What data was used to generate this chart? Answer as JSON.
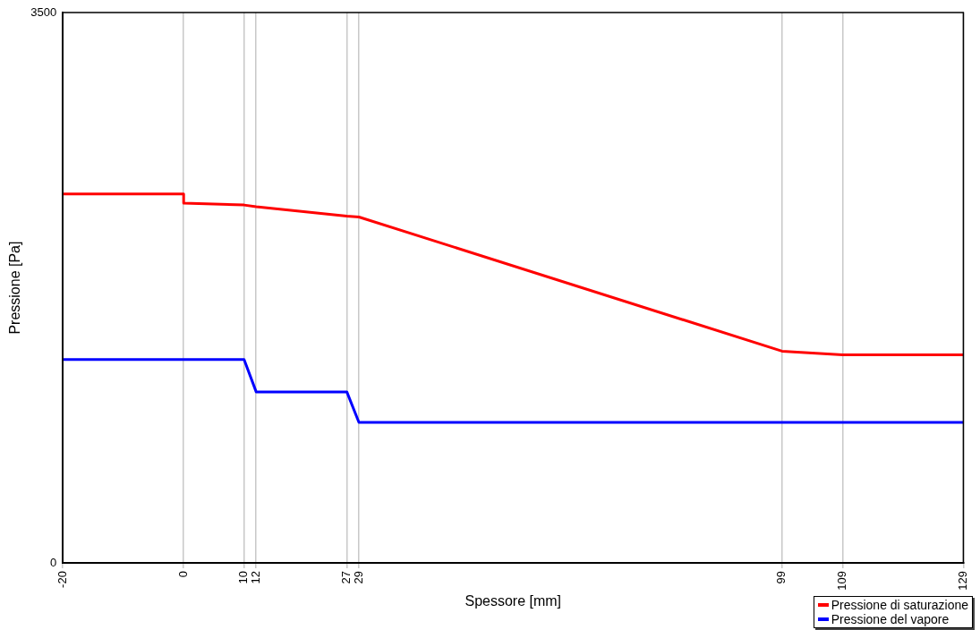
{
  "chart_data": {
    "type": "line",
    "xlabel": "Spessore [mm]",
    "ylabel": "Pressione [Pa]",
    "x": [
      -20,
      0,
      0,
      10,
      12,
      27,
      29,
      99,
      109,
      129
    ],
    "series": [
      {
        "name": "Pressione di saturazione",
        "color": "#ff0000",
        "values": [
          2347,
          2347,
          2288,
          2276,
          2265,
          2206,
          2200,
          1347,
          1324,
          1324
        ]
      },
      {
        "name": "Pressione del vapore",
        "color": "#0000ff",
        "values": [
          1294,
          1294,
          1294,
          1294,
          1088,
          1088,
          894,
          894,
          894,
          894
        ]
      }
    ],
    "xlim": [
      -20,
      129
    ],
    "xticks": [
      -20,
      0,
      10,
      12,
      27,
      29,
      99,
      109,
      129
    ],
    "ylim": [
      0,
      3500
    ],
    "yticks": [
      0,
      3500
    ],
    "grid": "x",
    "legend": "bottom right",
    "marker": "none",
    "line_style": "solid"
  }
}
